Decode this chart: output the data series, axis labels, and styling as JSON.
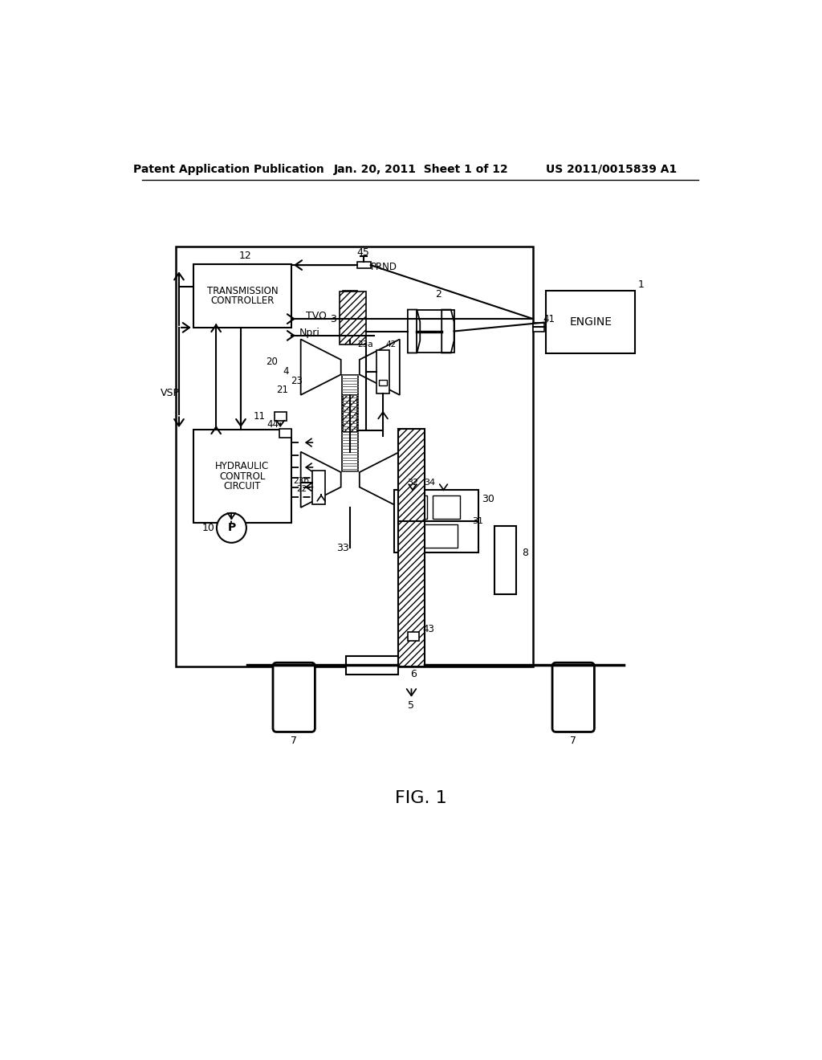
{
  "header_left": "Patent Application Publication",
  "header_center": "Jan. 20, 2011  Sheet 1 of 12",
  "header_right": "US 2011/0015839 A1",
  "figure_label": "FIG. 1",
  "bg_color": "#ffffff"
}
